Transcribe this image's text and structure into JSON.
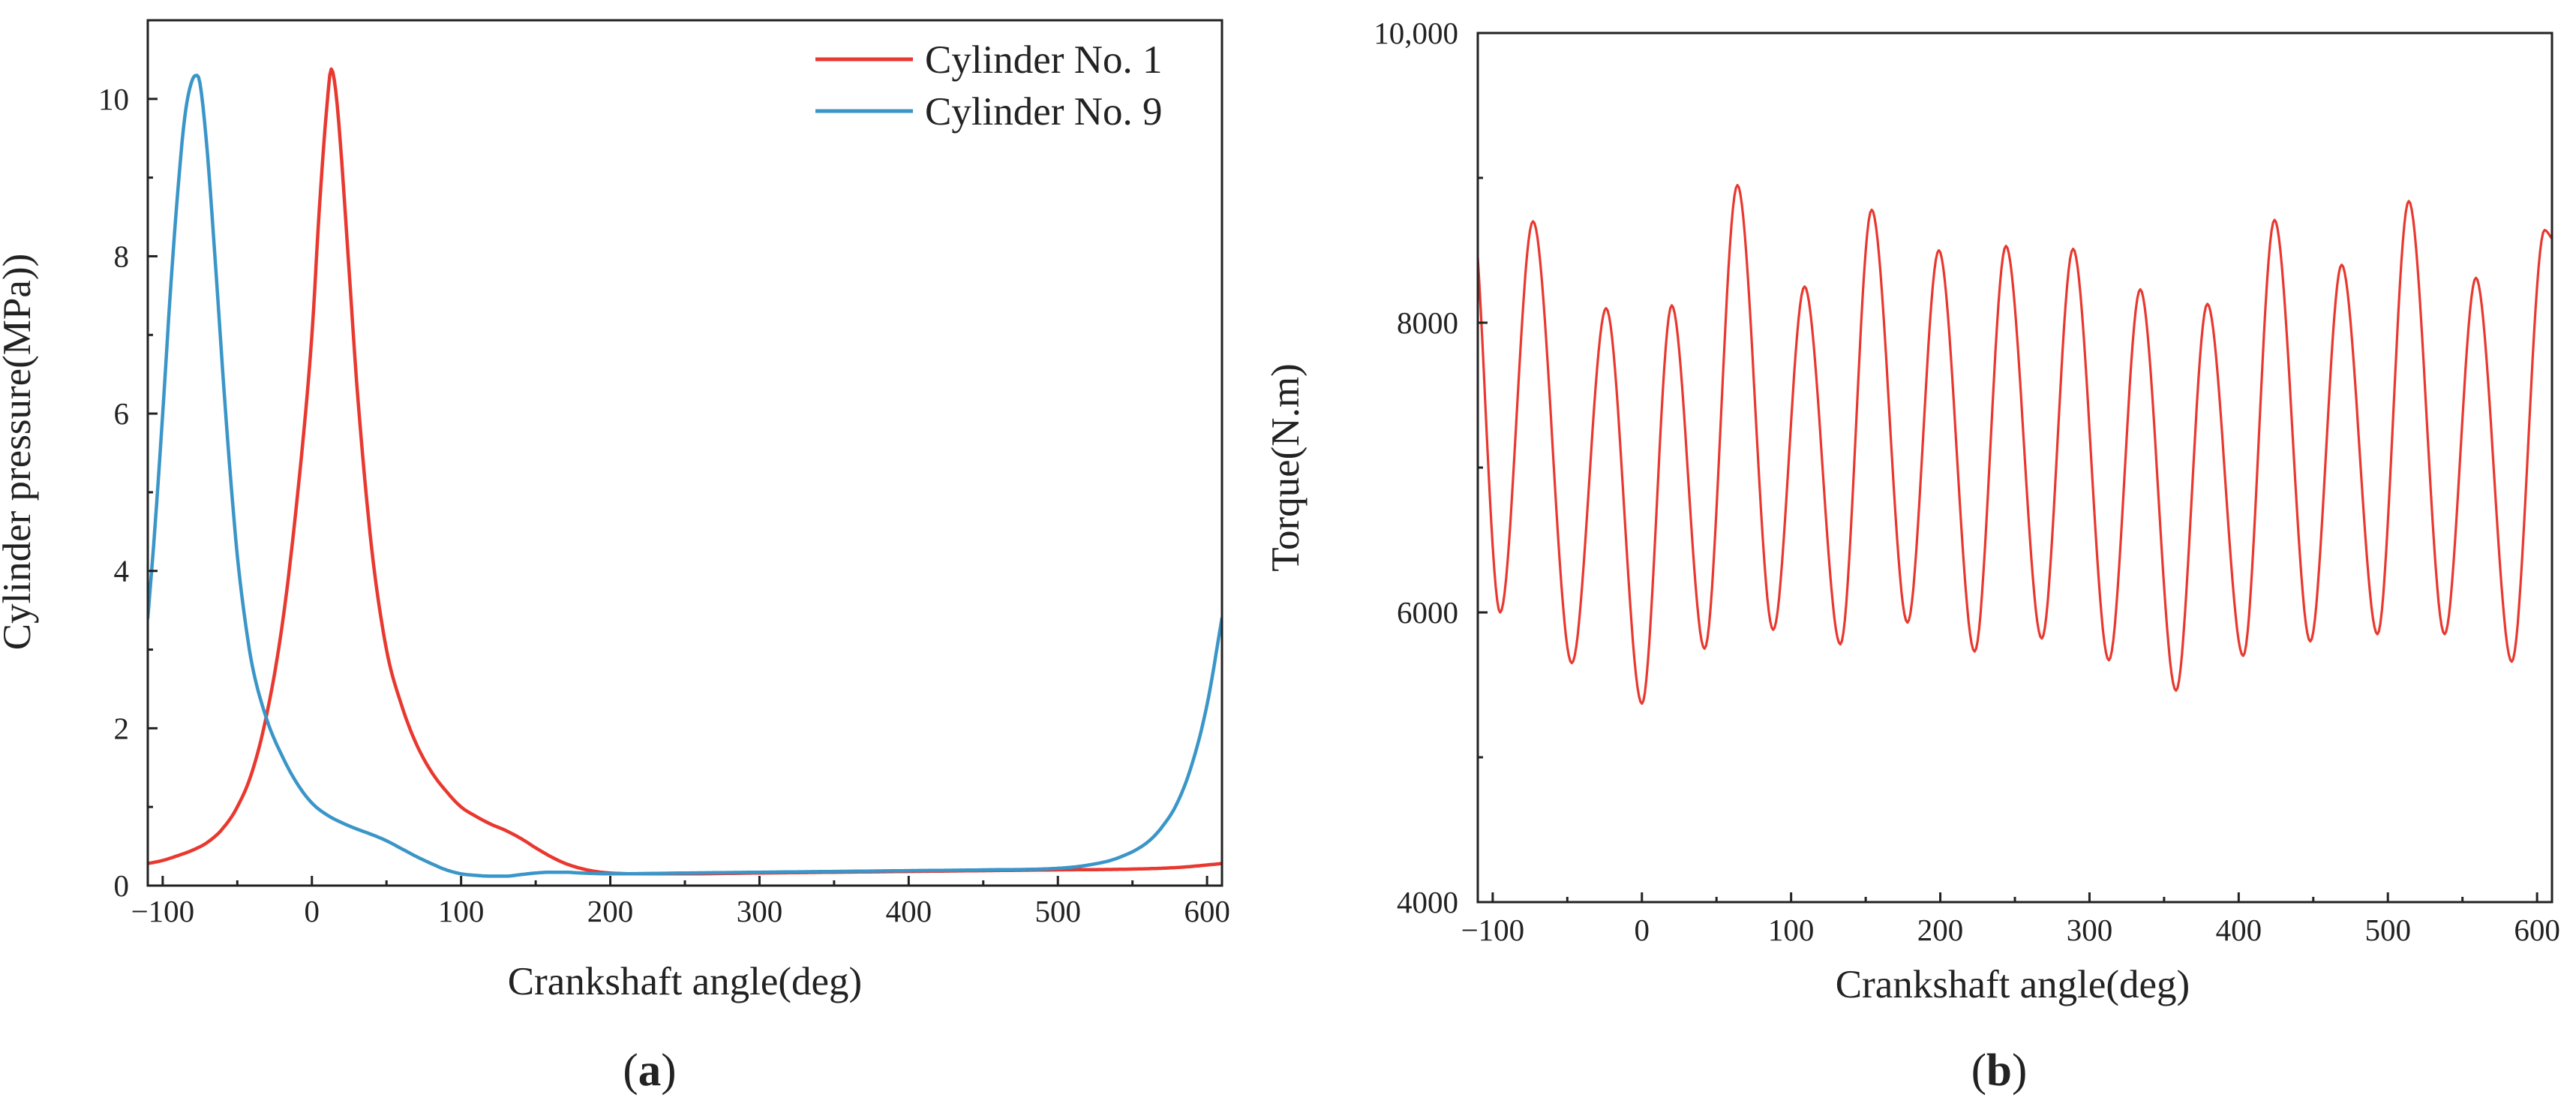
{
  "chart_data": [
    {
      "id": "a",
      "type": "line",
      "panel_label": "a",
      "xlabel": "Crankshaft angle(deg)",
      "ylabel": "Cylinder pressure(MPa))",
      "xlim": [
        -110,
        610
      ],
      "ylim": [
        0,
        11
      ],
      "x_ticks": [
        -100,
        0,
        100,
        200,
        300,
        400,
        500,
        600
      ],
      "x_tick_labels": [
        "−100",
        "0",
        "100",
        "200",
        "300",
        "400",
        "500",
        "600"
      ],
      "y_ticks": [
        0,
        2,
        4,
        6,
        8,
        10
      ],
      "y_tick_labels": [
        "0",
        "2",
        "4",
        "6",
        "8",
        "10"
      ],
      "grid": false,
      "legend_position": "top-right",
      "series": [
        {
          "name": "Cylinder No. 1",
          "color": "#e8382f",
          "x": [
            -110,
            -100,
            -90,
            -80,
            -70,
            -60,
            -50,
            -40,
            -30,
            -20,
            -10,
            0,
            5,
            10,
            13,
            16,
            20,
            25,
            30,
            40,
            50,
            60,
            70,
            80,
            90,
            100,
            110,
            120,
            130,
            140,
            150,
            160,
            170,
            180,
            190,
            200,
            220,
            250,
            300,
            350,
            400,
            450,
            500,
            550,
            580,
            610
          ],
          "values": [
            0.28,
            0.32,
            0.38,
            0.45,
            0.55,
            0.72,
            1.0,
            1.45,
            2.2,
            3.3,
            4.9,
            7.0,
            8.6,
            9.9,
            10.38,
            10.1,
            9.2,
            7.8,
            6.4,
            4.3,
            3.0,
            2.3,
            1.8,
            1.45,
            1.2,
            1.0,
            0.88,
            0.78,
            0.7,
            0.6,
            0.48,
            0.37,
            0.28,
            0.22,
            0.18,
            0.16,
            0.15,
            0.15,
            0.16,
            0.17,
            0.18,
            0.19,
            0.2,
            0.21,
            0.23,
            0.28
          ]
        },
        {
          "name": "Cylinder No. 9",
          "color": "#3a95c8",
          "x": [
            -110,
            -105,
            -100,
            -95,
            -90,
            -85,
            -80,
            -77,
            -75,
            -70,
            -65,
            -60,
            -55,
            -50,
            -45,
            -40,
            -30,
            -20,
            -10,
            0,
            10,
            20,
            30,
            40,
            50,
            60,
            70,
            80,
            90,
            100,
            110,
            120,
            130,
            140,
            150,
            160,
            170,
            180,
            200,
            250,
            300,
            350,
            400,
            450,
            500,
            520,
            540,
            560,
            570,
            580,
            590,
            600,
            610
          ],
          "values": [
            3.4,
            4.6,
            6.0,
            7.5,
            8.8,
            9.8,
            10.25,
            10.3,
            10.2,
            9.3,
            8.0,
            6.6,
            5.3,
            4.2,
            3.4,
            2.8,
            2.1,
            1.65,
            1.3,
            1.05,
            0.9,
            0.8,
            0.72,
            0.65,
            0.57,
            0.47,
            0.37,
            0.28,
            0.2,
            0.15,
            0.13,
            0.12,
            0.12,
            0.14,
            0.16,
            0.17,
            0.17,
            0.16,
            0.15,
            0.16,
            0.17,
            0.18,
            0.19,
            0.2,
            0.22,
            0.26,
            0.35,
            0.55,
            0.75,
            1.05,
            1.55,
            2.3,
            3.4
          ]
        }
      ]
    },
    {
      "id": "b",
      "type": "line",
      "panel_label": "b",
      "xlabel": "Crankshaft angle(deg)",
      "ylabel": "Torque(N.m)",
      "xlim": [
        -110,
        610
      ],
      "ylim": [
        4000,
        10000
      ],
      "x_ticks": [
        -100,
        0,
        100,
        200,
        300,
        400,
        500,
        600
      ],
      "x_tick_labels": [
        "−100",
        "0",
        "100",
        "200",
        "300",
        "400",
        "500",
        "600"
      ],
      "y_ticks": [
        4000,
        6000,
        8000,
        10000
      ],
      "y_tick_labels": [
        "4000",
        "6000",
        "8000",
        "10,000"
      ],
      "grid": false,
      "series": [
        {
          "name": "Torque",
          "color": "#e8382f",
          "x": [
            -110,
            -95,
            -73,
            -47,
            -24,
            0,
            20,
            42,
            64,
            88,
            109,
            133,
            154,
            178,
            199,
            223,
            244,
            268,
            289,
            313,
            334,
            358,
            379,
            403,
            424,
            448,
            469,
            493,
            514,
            538,
            559,
            583,
            605,
            610
          ],
          "values": [
            8450,
            6000,
            8700,
            5650,
            8100,
            5370,
            8120,
            5750,
            8950,
            5880,
            8250,
            5780,
            8780,
            5930,
            8500,
            5730,
            8530,
            5820,
            8510,
            5670,
            8230,
            5460,
            8130,
            5700,
            8710,
            5800,
            8400,
            5850,
            8840,
            5850,
            8310,
            5660,
            8640,
            8580
          ]
        }
      ]
    }
  ]
}
